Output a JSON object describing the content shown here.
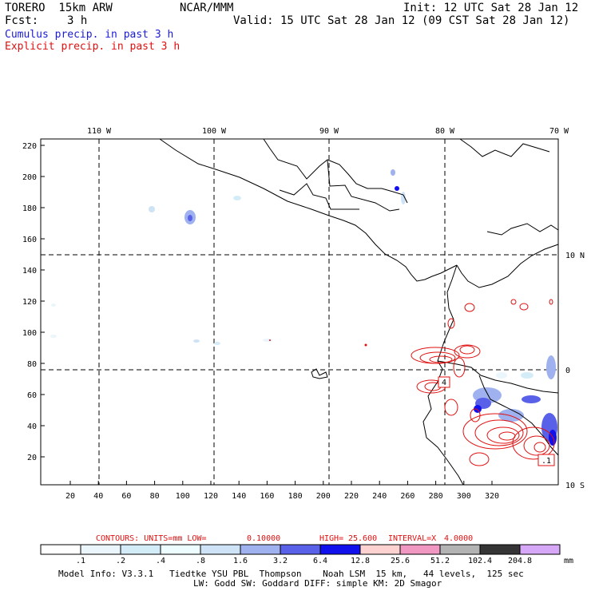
{
  "header": {
    "model": "TORERO  15km ARW",
    "center": "NCAR/MMM",
    "init": "Init: 12 UTC Sat 28 Jan 12",
    "fcst_label": "Fcst:",
    "fcst_value": "3 h",
    "valid": "Valid: 15 UTC Sat 28 Jan 12 (09 CST Sat 28 Jan 12)",
    "line1": "Cumulus precip. in past 3 h",
    "line2": "Explicit precip. in past 3 h"
  },
  "colors": {
    "cumulus": "#1a1ad6",
    "explicit": "#e01010",
    "coast": "#000000"
  },
  "map": {
    "lon_labels": [
      "110 W",
      "100 W",
      "90 W",
      "80 W",
      "70 W"
    ],
    "lat_labels": [
      "10 N",
      "0",
      "10 S"
    ],
    "y_ticks": [
      "220",
      "200",
      "180",
      "160",
      "140",
      "120",
      "100",
      "80",
      "60",
      "40",
      "20"
    ],
    "x_ticks": [
      "20",
      "40",
      "60",
      "80",
      "100",
      "120",
      "140",
      "160",
      "180",
      "200",
      "220",
      "240",
      "260",
      "280",
      "300",
      "320"
    ],
    "boxed_labels": [
      "4",
      ".1"
    ]
  },
  "contours": {
    "prefix": "CONTOURS:  UNITS=mm  LOW=",
    "low": "0.10000",
    "high_label": "HIGH=",
    "high": "25.600",
    "interval_label": "INTERVAL=X",
    "interval": "4.0000"
  },
  "legend": {
    "labels": [
      ".1",
      ".2",
      ".4",
      ".8",
      "1.6",
      "3.2",
      "6.4",
      "12.8",
      "25.6",
      "51.2",
      "102.4",
      "204.8"
    ],
    "unit": "mm",
    "colors": [
      "#ffffff",
      "#eaf6fb",
      "#d3ecf7",
      "#eefdff",
      "#cfe3f7",
      "#9fb2ef",
      "#5a61e9",
      "#1111ee",
      "#ffd2d2",
      "#f097c2",
      "#b3b3b3",
      "#353535",
      "#d8a8f8"
    ]
  },
  "footer": {
    "line1": "Model Info: V3.3.1   Tiedtke YSU PBL  Thompson    Noah LSM  15 km,   44 levels,  125 sec",
    "line2": "LW: Godd SW: Goddard DIFF: simple KM: 2D Smagor"
  }
}
